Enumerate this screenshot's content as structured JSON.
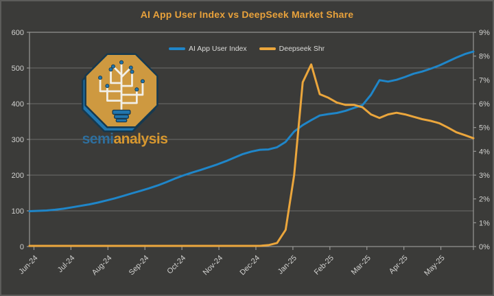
{
  "title": "AI App User Index vs DeepSeek Market Share",
  "logo": {
    "semi": "semi",
    "analysis": "analysis"
  },
  "colors": {
    "background": "#3B3B39",
    "frame_border": "#5C5C5A",
    "title": "#E9A23B",
    "axis_label": "#D2D2D0",
    "grid_line": "#6E6E6C",
    "axis_frame": "#989896",
    "blue": "#1F86C9",
    "orange": "#EBA63C",
    "wordmark_semi": "#2E6F9E",
    "wordmark_analysis": "#D8982F",
    "logo_gold": "#CE9940",
    "logo_blue": "#2176AE",
    "logo_outline": "#16394F"
  },
  "chart_data": {
    "type": "line",
    "title": "AI App User Index vs DeepSeek Market Share",
    "x_tick_labels": [
      "Jun-24",
      "Jul-24",
      "Aug-24",
      "Sep-24",
      "Oct-24",
      "Nov-24",
      "Dec-24",
      "Jan-25",
      "Feb-25",
      "Mar-25",
      "Apr-25",
      "May-25"
    ],
    "x_granularity": "weekly, Jun-24 through late May-25 (53 points)",
    "left_axis": {
      "min": 0,
      "max": 600,
      "ticks": [
        0,
        100,
        200,
        300,
        400,
        500,
        600
      ]
    },
    "right_axis": {
      "min": 0,
      "max": 9,
      "ticks": [
        0,
        1,
        2,
        3,
        4,
        5,
        6,
        7,
        8,
        9
      ],
      "format": "percent"
    },
    "grid": "horizontal",
    "legend_position": "top-center",
    "series": [
      {
        "name": "AI App User Index",
        "axis": "left",
        "color": "#1F86C9",
        "values": [
          99,
          100,
          101,
          103,
          106,
          110,
          114,
          118,
          123,
          129,
          135,
          142,
          149,
          156,
          163,
          171,
          180,
          190,
          199,
          207,
          214,
          222,
          230,
          239,
          249,
          259,
          266,
          271,
          272,
          278,
          293,
          322,
          340,
          354,
          367,
          371,
          374,
          380,
          388,
          396,
          425,
          466,
          462,
          467,
          475,
          484,
          490,
          498,
          507,
          518,
          529,
          539,
          546
        ]
      },
      {
        "name": "Deepseek Shr",
        "axis": "right",
        "color": "#EBA63C",
        "values": [
          0.03,
          0.03,
          0.03,
          0.03,
          0.03,
          0.03,
          0.03,
          0.03,
          0.03,
          0.03,
          0.03,
          0.03,
          0.03,
          0.03,
          0.03,
          0.03,
          0.03,
          0.03,
          0.03,
          0.03,
          0.03,
          0.03,
          0.03,
          0.03,
          0.03,
          0.03,
          0.03,
          0.03,
          0.06,
          0.15,
          0.7,
          3.0,
          6.9,
          7.65,
          6.4,
          6.25,
          6.05,
          5.95,
          5.95,
          5.85,
          5.55,
          5.4,
          5.55,
          5.62,
          5.55,
          5.45,
          5.35,
          5.28,
          5.18,
          5.0,
          4.8,
          4.68,
          4.55
        ]
      }
    ]
  }
}
